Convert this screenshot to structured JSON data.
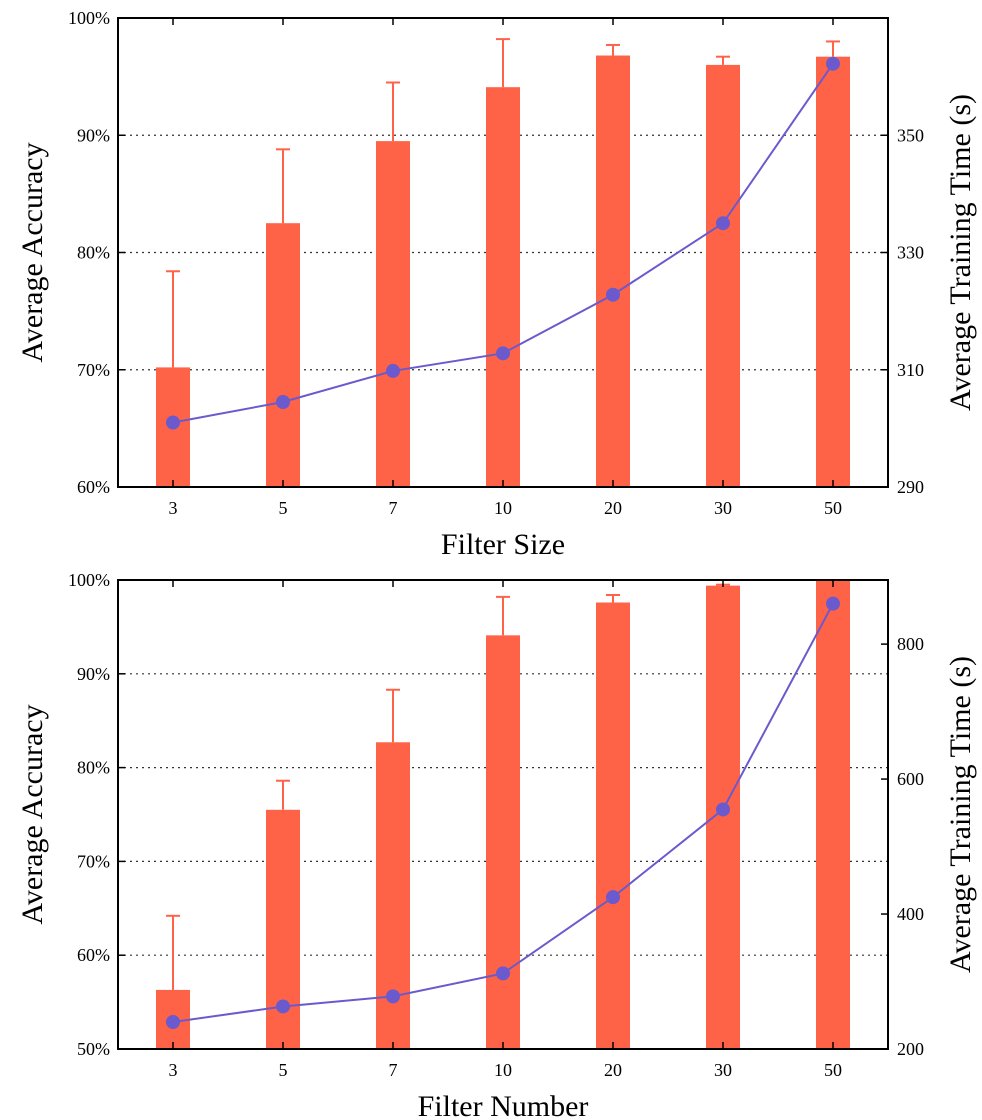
{
  "colors": {
    "bar": "#ff6347",
    "line": "#6a5acd",
    "grid": "#333333",
    "axis": "#000000"
  },
  "chart_data": [
    {
      "type": "bar",
      "categories": [
        "3",
        "5",
        "7",
        "10",
        "20",
        "30",
        "50"
      ],
      "xlabel": "Filter Size",
      "ylabel": "Average Accuracy",
      "y2label": "Average Training Time (s)",
      "ylim": [
        60,
        100
      ],
      "yticks": [
        60,
        70,
        80,
        90,
        100
      ],
      "ytick_labels": [
        "60%",
        "70%",
        "80%",
        "90%",
        "100%"
      ],
      "y2lim": [
        290,
        370
      ],
      "y2ticks": [
        290,
        310,
        330,
        350
      ],
      "y2tick_labels": [
        "290",
        "310",
        "330",
        "350"
      ],
      "grid": "horizontal dotted",
      "bars": {
        "values": [
          70.2,
          82.5,
          89.5,
          94.1,
          96.8,
          96.0,
          96.7
        ],
        "error_upper": [
          8.2,
          6.3,
          5.0,
          4.1,
          0.9,
          0.7,
          1.3
        ]
      },
      "line": {
        "values": [
          301.0,
          304.5,
          309.8,
          312.8,
          322.8,
          335.0,
          362.2
        ]
      }
    },
    {
      "type": "bar",
      "categories": [
        "3",
        "5",
        "7",
        "10",
        "20",
        "30",
        "50"
      ],
      "xlabel": "Filter Number",
      "ylabel": "Average Accuracy",
      "y2label": "Average Training Time (s)",
      "ylim": [
        50,
        100
      ],
      "yticks": [
        50,
        60,
        70,
        80,
        90,
        100
      ],
      "ytick_labels": [
        "50%",
        "60%",
        "70%",
        "80%",
        "90%",
        "100%"
      ],
      "y2lim": [
        200,
        895
      ],
      "y2ticks": [
        200,
        400,
        600,
        800
      ],
      "y2tick_labels": [
        "200",
        "400",
        "600",
        "800"
      ],
      "grid": "horizontal dotted",
      "bars": {
        "values": [
          56.3,
          75.5,
          82.7,
          94.1,
          97.6,
          99.4,
          100.0
        ],
        "error_upper": [
          7.9,
          3.1,
          5.6,
          4.1,
          0.8,
          0.1,
          0.0
        ]
      },
      "line": {
        "values": [
          240,
          263,
          278,
          312,
          425,
          555,
          860
        ]
      }
    }
  ]
}
